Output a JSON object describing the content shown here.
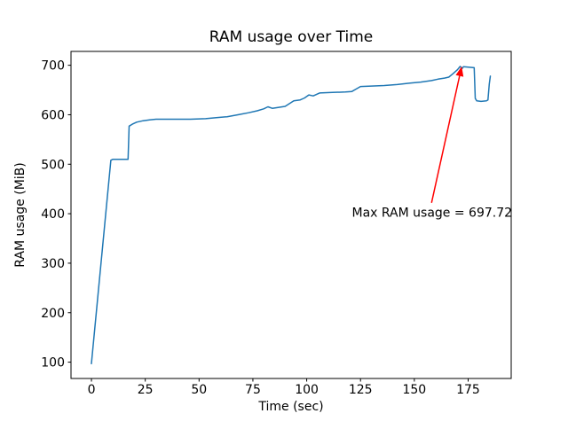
{
  "figure": {
    "background": "#ffffff"
  },
  "chart_data": {
    "type": "line",
    "title": "RAM usage over Time",
    "xlabel": "Time (sec)",
    "ylabel": "RAM usage (MiB)",
    "xlim": [
      -9.5,
      195
    ],
    "ylim": [
      67,
      728
    ],
    "x_ticks": [
      0,
      25,
      50,
      75,
      100,
      125,
      150,
      175
    ],
    "y_ticks": [
      100,
      200,
      300,
      400,
      500,
      600,
      700
    ],
    "grid": false,
    "legend": false,
    "line_color": "#1f77b4",
    "axis_color": "#000000",
    "series": [
      {
        "name": "RAM usage",
        "points": [
          [
            0,
            97
          ],
          [
            9,
            508
          ],
          [
            10,
            510
          ],
          [
            17,
            510
          ],
          [
            17.5,
            577
          ],
          [
            19,
            581
          ],
          [
            21,
            585
          ],
          [
            24,
            588
          ],
          [
            27,
            589.5
          ],
          [
            30,
            591
          ],
          [
            38,
            591
          ],
          [
            46,
            591
          ],
          [
            53,
            592
          ],
          [
            58,
            594
          ],
          [
            63,
            596
          ],
          [
            68,
            600
          ],
          [
            73,
            604
          ],
          [
            77,
            608
          ],
          [
            80,
            612
          ],
          [
            82,
            616
          ],
          [
            84,
            613
          ],
          [
            87,
            615
          ],
          [
            90,
            617
          ],
          [
            94,
            628
          ],
          [
            97,
            630
          ],
          [
            99,
            634
          ],
          [
            101,
            640
          ],
          [
            103,
            638
          ],
          [
            106,
            644
          ],
          [
            112,
            645
          ],
          [
            118,
            646
          ],
          [
            121,
            647
          ],
          [
            123,
            652
          ],
          [
            125,
            657
          ],
          [
            130,
            658
          ],
          [
            136,
            659
          ],
          [
            142,
            661
          ],
          [
            148,
            664
          ],
          [
            153,
            666
          ],
          [
            158,
            669
          ],
          [
            161,
            672
          ],
          [
            164,
            674
          ],
          [
            166,
            676
          ],
          [
            168,
            683
          ],
          [
            170,
            691
          ],
          [
            171.3,
            697.72
          ],
          [
            172.2,
            693.5
          ],
          [
            172.8,
            697
          ],
          [
            174.5,
            696.5
          ],
          [
            177.8,
            695
          ],
          [
            178.3,
            633
          ],
          [
            179,
            628
          ],
          [
            181,
            627
          ],
          [
            183.5,
            628
          ],
          [
            184.2,
            630
          ],
          [
            184.8,
            662
          ],
          [
            185.3,
            678
          ]
        ]
      }
    ],
    "annotation": {
      "label": "Max RAM usage = 697.72",
      "color": "#ff0000",
      "arrow_tip": [
        172,
        697.72
      ],
      "arrow_tail": [
        158,
        422
      ],
      "text_pos": [
        121,
        394
      ]
    },
    "max_value": 697.72
  }
}
